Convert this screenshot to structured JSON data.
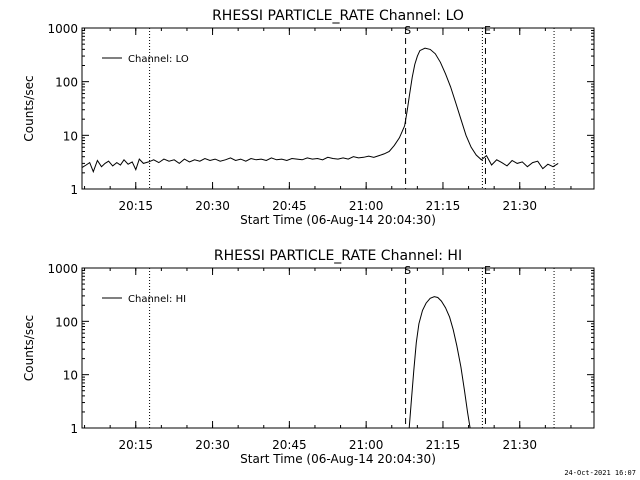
{
  "footer": {
    "date": "24-Oct-2021 16:07"
  },
  "chart_data": [
    {
      "type": "line",
      "title": "RHESSI PARTICLE_RATE Channel: LO",
      "xlabel": "Start Time (06-Aug-14 20:04:30)",
      "ylabel": "Counts/sec",
      "yscale": "log",
      "ylim": [
        1,
        1000
      ],
      "xlim_minutes": [
        0,
        100
      ],
      "xticks": [
        {
          "label": "20:15",
          "min": 10.5
        },
        {
          "label": "20:30",
          "min": 25.5
        },
        {
          "label": "20:45",
          "min": 40.5
        },
        {
          "label": "21:00",
          "min": 55.5
        },
        {
          "label": "21:15",
          "min": 70.5
        },
        {
          "label": "21:30",
          "min": 85.5
        }
      ],
      "yticks": [
        {
          "label": "1",
          "value": 1
        },
        {
          "label": "10",
          "value": 10
        },
        {
          "label": "100",
          "value": 100
        },
        {
          "label": "1000",
          "value": 1000
        }
      ],
      "legend": {
        "label": "Channel: LO",
        "position": "top-left"
      },
      "markers": [
        {
          "type": "dotted",
          "min": 13.2
        },
        {
          "type": "dashed",
          "min": 63.2,
          "label": "S"
        },
        {
          "type": "dotted",
          "min": 78.2
        },
        {
          "type": "dashed",
          "min": 78.8,
          "label": "E"
        },
        {
          "type": "dotted",
          "min": 92.2
        }
      ],
      "series": [
        {
          "name": "Channel: LO",
          "x": [
            0,
            0.8,
            1.5,
            2.2,
            3,
            3.8,
            4.5,
            5.2,
            6,
            6.8,
            7.5,
            8.2,
            9,
            9.8,
            10.5,
            11.2,
            12,
            13,
            14,
            15,
            16,
            17,
            18,
            19,
            20,
            21,
            22,
            23,
            24,
            25,
            26,
            27,
            28,
            29,
            30,
            31,
            32,
            33,
            34,
            35,
            36,
            37,
            38,
            39,
            40,
            41,
            42,
            43,
            44,
            45,
            46,
            47,
            48,
            49,
            50,
            51,
            52,
            53,
            54,
            55,
            56,
            57,
            58,
            59,
            60,
            61,
            62,
            63,
            63.5,
            64,
            64.5,
            65,
            65.5,
            66,
            67,
            68,
            69,
            70,
            71,
            72,
            73,
            74,
            75,
            76,
            77,
            78,
            79,
            80,
            81,
            82,
            83,
            84,
            85,
            86,
            87,
            88,
            89,
            90,
            91,
            92,
            93
          ],
          "y": [
            2.5,
            2.8,
            3.1,
            2.1,
            3.4,
            2.6,
            3.0,
            3.3,
            2.7,
            3.1,
            2.8,
            3.5,
            2.9,
            3.2,
            2.3,
            3.6,
            3.0,
            3.2,
            3.5,
            3.1,
            3.6,
            3.3,
            3.5,
            3.0,
            3.6,
            3.2,
            3.5,
            3.3,
            3.7,
            3.4,
            3.6,
            3.3,
            3.5,
            3.8,
            3.4,
            3.6,
            3.3,
            3.7,
            3.5,
            3.6,
            3.4,
            3.8,
            3.5,
            3.6,
            3.4,
            3.7,
            3.6,
            3.5,
            3.8,
            3.6,
            3.7,
            3.5,
            3.9,
            3.7,
            3.6,
            3.8,
            3.6,
            4.0,
            3.8,
            3.9,
            4.1,
            3.9,
            4.2,
            4.5,
            5.0,
            6.5,
            9.0,
            15,
            28,
            60,
            120,
            210,
            300,
            380,
            420,
            400,
            330,
            230,
            140,
            80,
            40,
            20,
            10,
            6.0,
            4.3,
            3.5,
            4.2,
            2.8,
            3.5,
            3.1,
            2.7,
            3.4,
            3.0,
            3.2,
            2.6,
            3.1,
            3.3,
            2.4,
            2.9,
            2.6,
            3.0
          ],
          "color": "#000000"
        }
      ]
    },
    {
      "type": "line",
      "title": "RHESSI PARTICLE_RATE Channel: HI",
      "xlabel": "Start Time (06-Aug-14 20:04:30)",
      "ylabel": "Counts/sec",
      "yscale": "log",
      "ylim": [
        1,
        1000
      ],
      "xlim_minutes": [
        0,
        100
      ],
      "xticks": [
        {
          "label": "20:15",
          "min": 10.5
        },
        {
          "label": "20:30",
          "min": 25.5
        },
        {
          "label": "20:45",
          "min": 40.5
        },
        {
          "label": "21:00",
          "min": 55.5
        },
        {
          "label": "21:15",
          "min": 70.5
        },
        {
          "label": "21:30",
          "min": 85.5
        }
      ],
      "yticks": [
        {
          "label": "1",
          "value": 1
        },
        {
          "label": "10",
          "value": 10
        },
        {
          "label": "100",
          "value": 100
        },
        {
          "label": "1000",
          "value": 1000
        }
      ],
      "legend": {
        "label": "Channel: HI",
        "position": "top-left"
      },
      "markers": [
        {
          "type": "dotted",
          "min": 13.2
        },
        {
          "type": "dashed",
          "min": 63.2,
          "label": "S"
        },
        {
          "type": "dotted",
          "min": 78.2
        },
        {
          "type": "dashed",
          "min": 78.8,
          "label": "E"
        },
        {
          "type": "dotted",
          "min": 92.2
        }
      ],
      "series": [
        {
          "name": "Channel: HI",
          "x": [
            63.9,
            64.3,
            64.8,
            65.3,
            65.8,
            66.5,
            67.2,
            68,
            68.8,
            69.5,
            70.2,
            71,
            71.8,
            72.5,
            73.2,
            74,
            74.7,
            75.3,
            75.8
          ],
          "y": [
            1,
            3,
            12,
            40,
            90,
            160,
            220,
            270,
            290,
            280,
            240,
            180,
            120,
            70,
            35,
            14,
            5,
            2,
            1
          ],
          "color": "#000000"
        }
      ]
    }
  ]
}
